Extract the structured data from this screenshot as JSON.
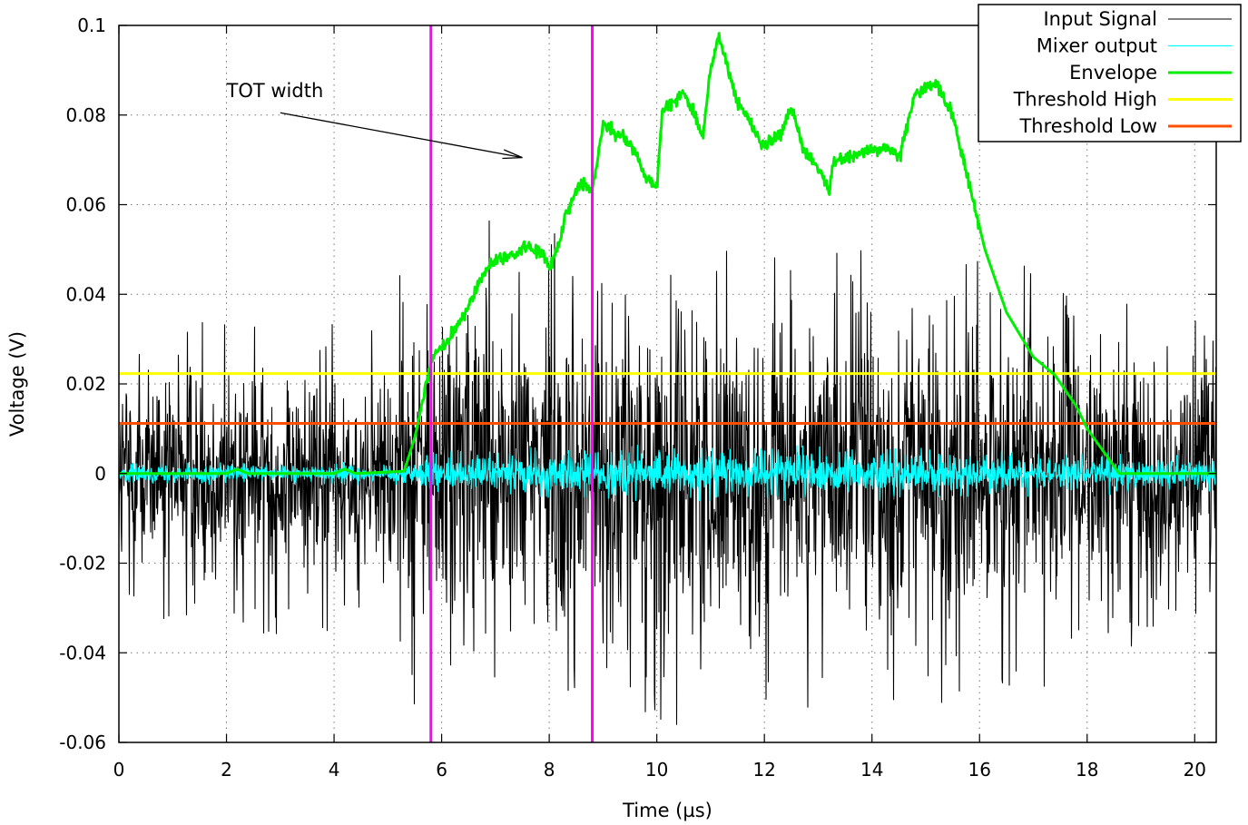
{
  "chart_data": {
    "type": "line",
    "title": "",
    "xlabel": "Time (µs)",
    "ylabel": "Voltage (V)",
    "xlim": [
      0,
      20.4
    ],
    "ylim": [
      -0.06,
      0.1
    ],
    "grid": true,
    "legend_position": "top-right",
    "x_ticks": [
      0,
      2,
      4,
      6,
      8,
      10,
      12,
      14,
      16,
      18,
      20
    ],
    "x_tick_labels": [
      "0",
      "2",
      "4",
      "6",
      "8",
      "10",
      "12",
      "14",
      "16",
      "18",
      "20"
    ],
    "y_ticks": [
      -0.06,
      -0.04,
      -0.02,
      0,
      0.02,
      0.04,
      0.06,
      0.08,
      0.1
    ],
    "y_tick_labels": [
      "-0.06",
      "-0.04",
      "-0.02",
      "0",
      "0.02",
      "0.04",
      "0.06",
      "0.08",
      "0.1"
    ],
    "series": [
      {
        "name": "Input Signal",
        "color": "#000000",
        "style": "noise",
        "envelope": {
          "x": [
            0,
            5.0,
            5.3,
            6.0,
            8.0,
            10.0,
            12.0,
            14.0,
            15.5,
            16.2,
            17.5,
            18.5,
            19.5,
            20.4
          ],
          "amp": [
            0.02,
            0.022,
            0.033,
            0.035,
            0.033,
            0.035,
            0.03,
            0.032,
            0.03,
            0.028,
            0.028,
            0.024,
            0.023,
            0.023
          ]
        },
        "peak_range": [
          -0.056,
          0.058
        ]
      },
      {
        "name": "Mixer output",
        "color": "#00ffff",
        "style": "noise",
        "envelope": {
          "x": [
            0,
            5.3,
            5.8,
            10.0,
            15.0,
            17.0,
            20.4
          ],
          "amp": [
            0.0015,
            0.0015,
            0.003,
            0.004,
            0.0035,
            0.003,
            0.0025
          ]
        },
        "peak_range": [
          -0.006,
          0.007
        ]
      },
      {
        "name": "Envelope",
        "color": "#00ee00",
        "x": [
          0,
          2.0,
          2.2,
          2.4,
          4.0,
          4.2,
          4.4,
          5.3,
          5.5,
          5.75,
          5.85,
          6.1,
          6.3,
          6.5,
          6.7,
          6.9,
          7.1,
          7.4,
          7.6,
          7.85,
          8.0,
          8.2,
          8.3,
          8.6,
          8.8,
          9.0,
          9.5,
          9.8,
          10.0,
          10.1,
          10.5,
          10.7,
          10.85,
          11.0,
          11.15,
          11.5,
          12.0,
          12.3,
          12.5,
          12.7,
          13.0,
          13.2,
          13.3,
          13.6,
          14.0,
          14.3,
          14.5,
          14.8,
          15.2,
          15.5,
          15.8,
          16.1,
          16.5,
          17.0,
          17.4,
          17.8,
          18.0,
          18.3,
          18.6,
          20.4
        ],
        "values": [
          0,
          0,
          0.001,
          0,
          0,
          0.001,
          0,
          0.0005,
          0.008,
          0.022,
          0.027,
          0.029,
          0.033,
          0.037,
          0.043,
          0.047,
          0.048,
          0.049,
          0.051,
          0.049,
          0.046,
          0.052,
          0.058,
          0.065,
          0.063,
          0.078,
          0.074,
          0.066,
          0.064,
          0.081,
          0.085,
          0.08,
          0.075,
          0.09,
          0.098,
          0.083,
          0.073,
          0.076,
          0.082,
          0.073,
          0.068,
          0.063,
          0.07,
          0.071,
          0.072,
          0.073,
          0.07,
          0.085,
          0.087,
          0.08,
          0.065,
          0.05,
          0.036,
          0.026,
          0.022,
          0.015,
          0.01,
          0.005,
          0,
          0
        ]
      },
      {
        "name": "Threshold High",
        "color": "#ffff00",
        "x": [
          0,
          20.4
        ],
        "values": [
          0.0223,
          0.0223
        ]
      },
      {
        "name": "Threshold Low",
        "color": "#ff5000",
        "x": [
          0,
          20.4
        ],
        "values": [
          0.0112,
          0.0112
        ]
      }
    ],
    "markers": [
      {
        "name": "tot-start",
        "x": 5.8,
        "color": "#ff00ff"
      },
      {
        "name": "tot-end",
        "x": 8.8,
        "color": "#ff00ff"
      }
    ],
    "annotations": [
      {
        "text": "TOT width",
        "text_at": [
          2.0,
          0.084
        ],
        "arrow_from": [
          3.0,
          0.0805
        ],
        "arrow_to": [
          7.5,
          0.0705
        ]
      }
    ]
  }
}
